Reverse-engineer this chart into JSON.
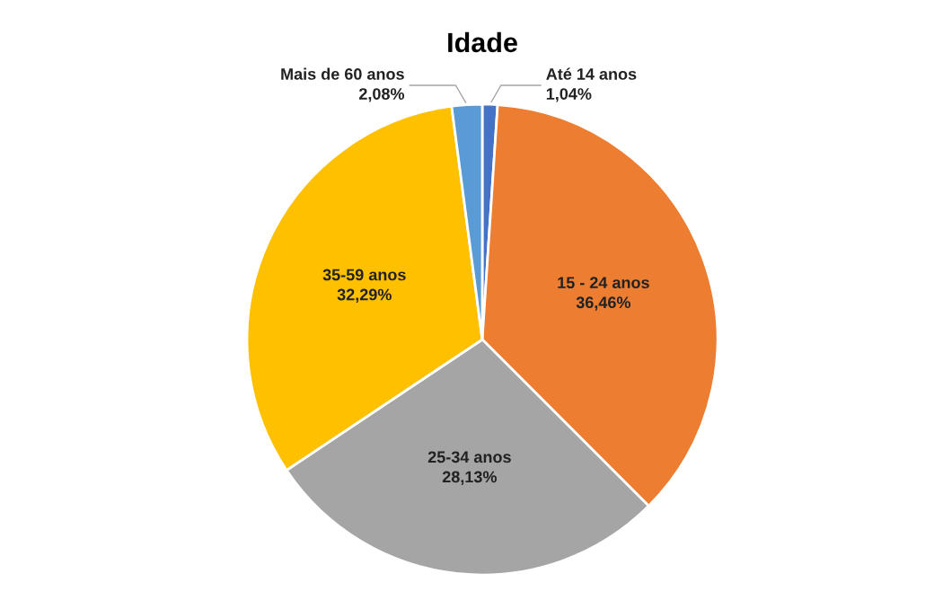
{
  "chart_data": {
    "type": "pie",
    "title": "Idade",
    "categories": [
      "Até 14 anos",
      "15 - 24 anos",
      "25-34 anos",
      "35-59 anos",
      "Mais de 60 anos"
    ],
    "values": [
      1.04,
      36.46,
      28.13,
      32.29,
      2.08
    ],
    "value_labels": [
      "1,04%",
      "36,46%",
      "28,13%",
      "32,29%",
      "2,08%"
    ],
    "colors": [
      "#4472c4",
      "#ed7d31",
      "#a5a5a5",
      "#ffc000",
      "#5b9bd5"
    ],
    "legend": false
  }
}
